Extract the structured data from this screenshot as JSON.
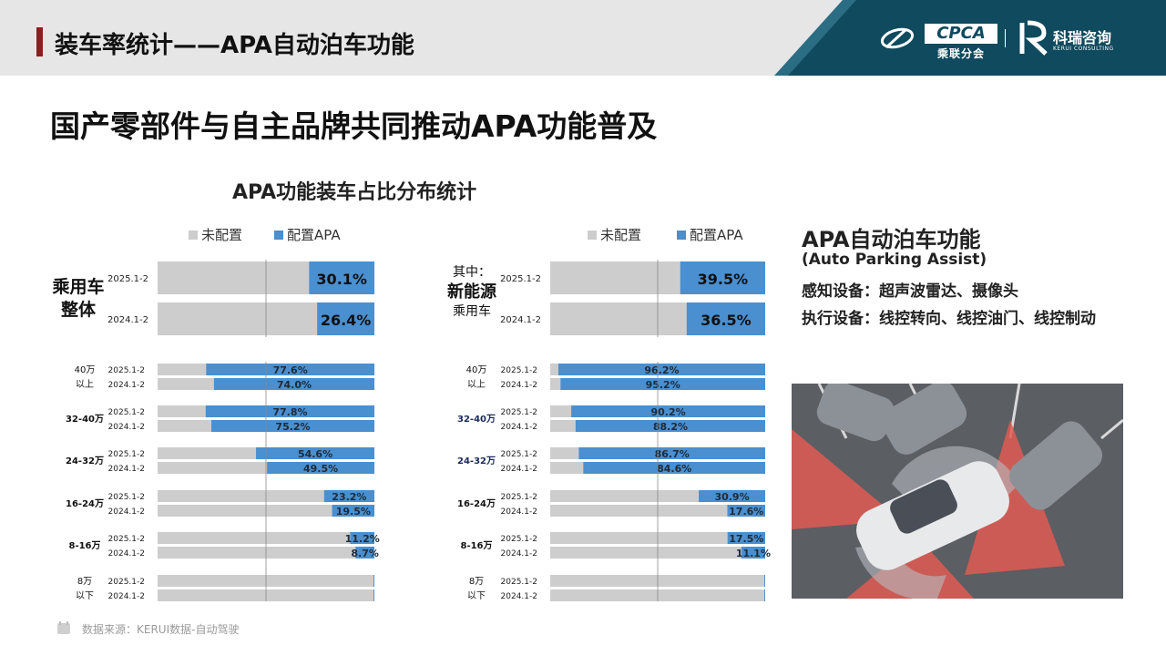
{
  "header": {
    "title": "装车率统计——APA自动泊车功能",
    "cpca_logo_text": "CPCA",
    "cpca_subtext": "乘联分会",
    "kerui_name": "科瑞咨询",
    "kerui_subtext": "KERUI CONSULTING"
  },
  "subtitle": "国产零部件与自主品牌共同推动APA功能普及",
  "chart_title": "APA功能装车占比分布统计",
  "info": {
    "title": "APA自动泊车功能",
    "subtitle": "(Auto Parking Assist)",
    "sensing": "感知设备：超声波雷达、摄像头",
    "actuation": "执行设备：线控转向、线控油门、线控制动"
  },
  "source": "数据来源：KERUI数据-自动驾驶",
  "colors": {
    "unconfigured": "#cdcdcd",
    "configured": "#4a8fcf",
    "header_accent": "#8f1d1d",
    "logo_band": "#0f4a5e"
  },
  "chart_data": [
    {
      "type": "bar",
      "orientation": "horizontal",
      "stacked": "100%",
      "legend": [
        "未配置",
        "配置APA"
      ],
      "legend_position": "top-right",
      "xlim": [
        0,
        100
      ],
      "grid": true,
      "overall": {
        "group_label": [
          "乘用车",
          "整体"
        ],
        "rows": [
          {
            "period": "2025.1-2",
            "value": 30.1,
            "label": "30.1%"
          },
          {
            "period": "2024.1-2",
            "value": 26.4,
            "label": "26.4%"
          }
        ]
      },
      "groups": [
        {
          "category": [
            "40万",
            "以上"
          ],
          "rows": [
            {
              "period": "2025.1-2",
              "value": 77.6,
              "label": "77.6%"
            },
            {
              "period": "2024.1-2",
              "value": 74.0,
              "label": "74.0%"
            }
          ]
        },
        {
          "category": [
            "32-40万"
          ],
          "rows": [
            {
              "period": "2025.1-2",
              "value": 77.8,
              "label": "77.8%"
            },
            {
              "period": "2024.1-2",
              "value": 75.2,
              "label": "75.2%"
            }
          ]
        },
        {
          "category": [
            "24-32万"
          ],
          "rows": [
            {
              "period": "2025.1-2",
              "value": 54.6,
              "label": "54.6%"
            },
            {
              "period": "2024.1-2",
              "value": 49.5,
              "label": "49.5%"
            }
          ]
        },
        {
          "category": [
            "16-24万"
          ],
          "rows": [
            {
              "period": "2025.1-2",
              "value": 23.2,
              "label": "23.2%"
            },
            {
              "period": "2024.1-2",
              "value": 19.5,
              "label": "19.5%"
            }
          ]
        },
        {
          "category": [
            "8-16万"
          ],
          "rows": [
            {
              "period": "2025.1-2",
              "value": 11.2,
              "label": "11.2%"
            },
            {
              "period": "2024.1-2",
              "value": 8.7,
              "label": "8.7%"
            }
          ]
        },
        {
          "category": [
            "8万",
            "以下"
          ],
          "rows": [
            {
              "period": "2025.1-2",
              "value": 0.4,
              "label": ""
            },
            {
              "period": "2024.1-2",
              "value": 0.4,
              "label": ""
            }
          ]
        }
      ]
    },
    {
      "type": "bar",
      "orientation": "horizontal",
      "stacked": "100%",
      "legend": [
        "未配置",
        "配置APA"
      ],
      "legend_position": "top-right",
      "xlim": [
        0,
        100
      ],
      "grid": true,
      "overall": {
        "group_label": [
          "其中：",
          "新能源",
          "乘用车"
        ],
        "rows": [
          {
            "period": "2025.1-2",
            "value": 39.5,
            "label": "39.5%"
          },
          {
            "period": "2024.1-2",
            "value": 36.5,
            "label": "36.5%"
          }
        ]
      },
      "groups": [
        {
          "category": [
            "40万",
            "以上"
          ],
          "rows": [
            {
              "period": "2025.1-2",
              "value": 96.2,
              "label": "96.2%"
            },
            {
              "period": "2024.1-2",
              "value": 95.2,
              "label": "95.2%"
            }
          ]
        },
        {
          "category": [
            "32-40万"
          ],
          "rows": [
            {
              "period": "2025.1-2",
              "value": 90.2,
              "label": "90.2%"
            },
            {
              "period": "2024.1-2",
              "value": 88.2,
              "label": "88.2%"
            }
          ]
        },
        {
          "category": [
            "24-32万"
          ],
          "rows": [
            {
              "period": "2025.1-2",
              "value": 86.7,
              "label": "86.7%"
            },
            {
              "period": "2024.1-2",
              "value": 84.6,
              "label": "84.6%"
            }
          ]
        },
        {
          "category": [
            "16-24万"
          ],
          "rows": [
            {
              "period": "2025.1-2",
              "value": 30.9,
              "label": "30.9%"
            },
            {
              "period": "2024.1-2",
              "value": 17.6,
              "label": "17.6%"
            }
          ]
        },
        {
          "category": [
            "8-16万"
          ],
          "rows": [
            {
              "period": "2025.1-2",
              "value": 17.5,
              "label": "17.5%"
            },
            {
              "period": "2024.1-2",
              "value": 11.1,
              "label": "11.1%"
            }
          ]
        },
        {
          "category": [
            "8万",
            "以下"
          ],
          "rows": [
            {
              "period": "2025.1-2",
              "value": 0.4,
              "label": ""
            },
            {
              "period": "2024.1-2",
              "value": 0.4,
              "label": ""
            }
          ]
        }
      ]
    }
  ]
}
